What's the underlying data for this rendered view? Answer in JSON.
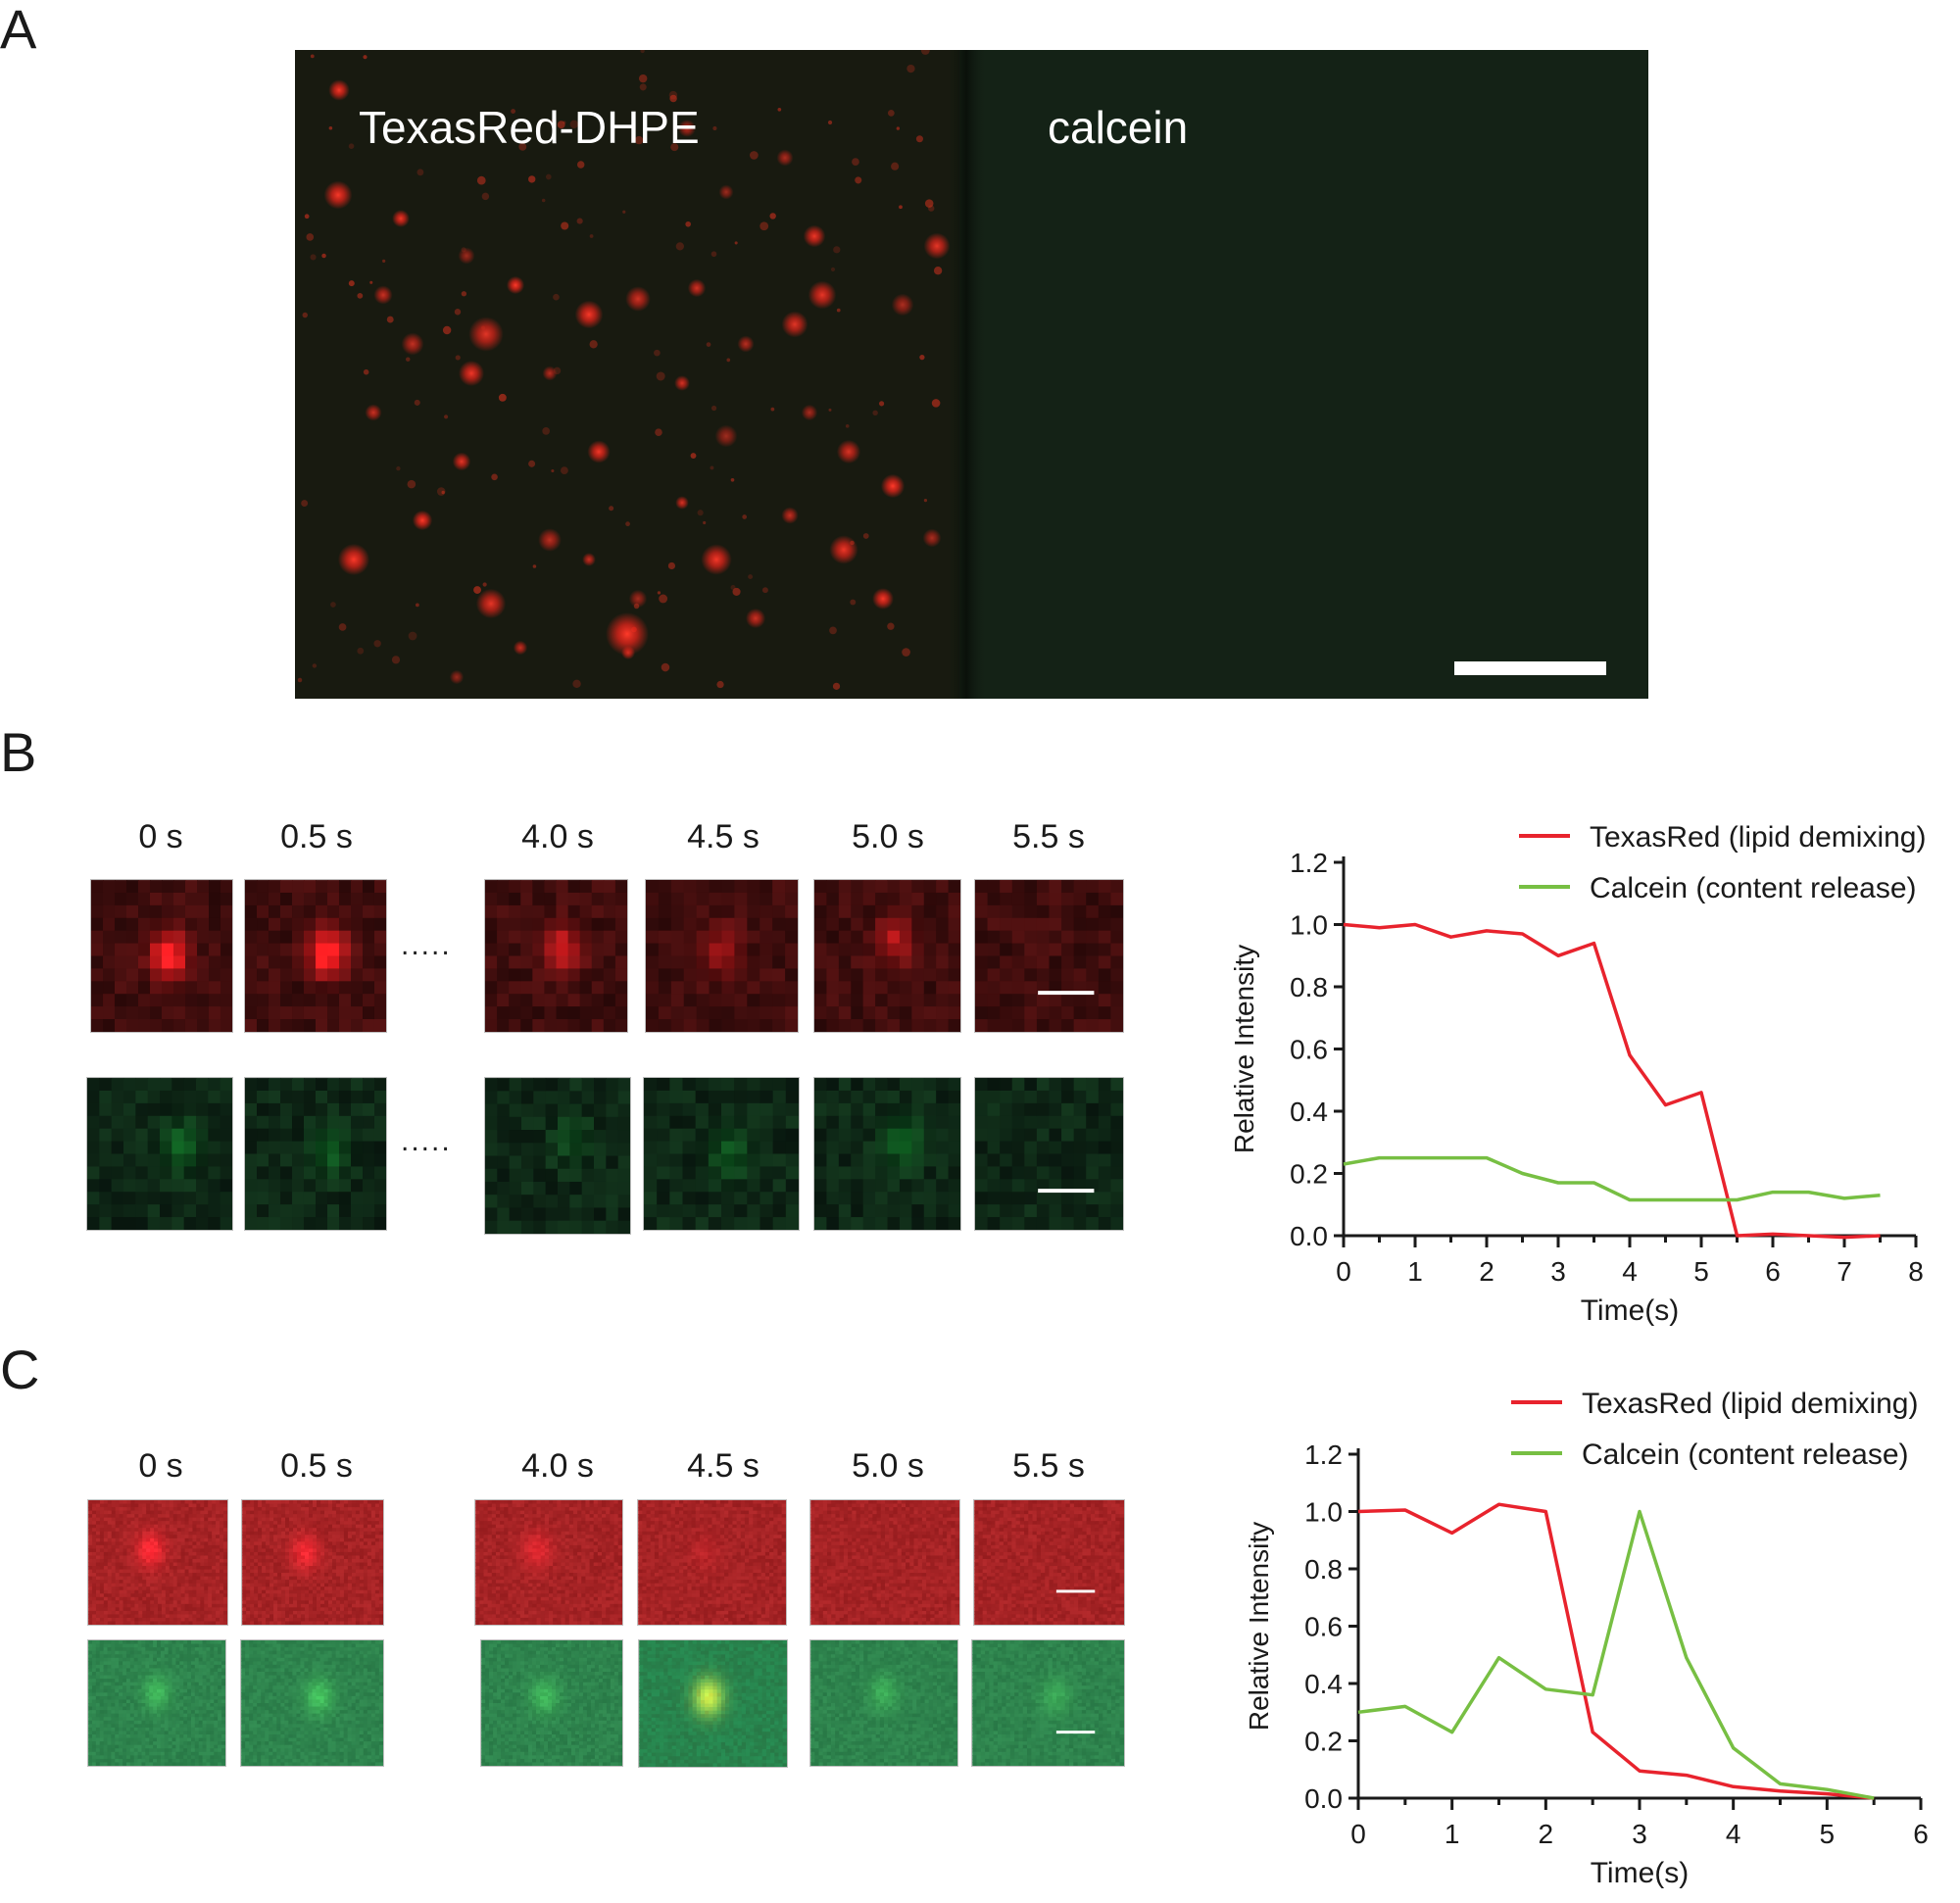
{
  "panels": {
    "A": {
      "letter": "A",
      "left_label": "TexasRed-DHPE",
      "right_label": "calcein"
    },
    "B": {
      "letter": "B",
      "times": [
        "0 s",
        "0.5 s",
        "4.0 s",
        "4.5 s",
        "5.0 s",
        "5.5 s"
      ],
      "ellipsis": "....."
    },
    "C": {
      "letter": "C",
      "times": [
        "0 s",
        "0.5 s",
        "4.0 s",
        "4.5 s",
        "5.0 s",
        "5.5 s"
      ]
    }
  },
  "colors": {
    "texasred": "#e8232d",
    "calcein": "#77bf43"
  },
  "chart_data": [
    {
      "type": "line",
      "title": "",
      "xlabel": "Time(s)",
      "ylabel": "Relative Intensity",
      "xlim": [
        0,
        8
      ],
      "ylim": [
        0,
        1.2
      ],
      "xticks": [
        0,
        1,
        2,
        3,
        4,
        5,
        6,
        7,
        8
      ],
      "yticks": [
        0.0,
        0.2,
        0.4,
        0.6,
        0.8,
        1.0,
        1.2
      ],
      "ytick_labels": [
        "0.0",
        "0.2",
        "0.4",
        "0.6",
        "0.8",
        "1.0",
        "1.2"
      ],
      "legend": "top-right",
      "series": [
        {
          "name": "TexasRed (lipid demixing)",
          "color": "#e8232d",
          "x": [
            0,
            0.5,
            1,
            1.5,
            2,
            2.5,
            3,
            3.5,
            4,
            4.5,
            5,
            5.5,
            6,
            6.5,
            7,
            7.5
          ],
          "y": [
            1.0,
            0.99,
            1.0,
            0.96,
            0.98,
            0.97,
            0.9,
            0.94,
            0.58,
            0.42,
            0.46,
            0.0,
            0.005,
            0.0,
            -0.005,
            0.0
          ]
        },
        {
          "name": "Calcein (content release)",
          "color": "#77bf43",
          "x": [
            0,
            0.5,
            1,
            1.5,
            2,
            2.5,
            3,
            3.5,
            4,
            4.5,
            5,
            5.5,
            6,
            6.5,
            7,
            7.5
          ],
          "y": [
            0.23,
            0.25,
            0.25,
            0.25,
            0.25,
            0.2,
            0.17,
            0.17,
            0.115,
            0.115,
            0.115,
            0.115,
            0.14,
            0.14,
            0.12,
            0.13
          ]
        }
      ]
    },
    {
      "type": "line",
      "title": "",
      "xlabel": "Time(s)",
      "ylabel": "Relative Intensity",
      "xlim": [
        0,
        6
      ],
      "ylim": [
        0,
        1.2
      ],
      "xticks": [
        0,
        1,
        2,
        3,
        4,
        5,
        6
      ],
      "yticks": [
        0.0,
        0.2,
        0.4,
        0.6,
        0.8,
        1.0,
        1.2
      ],
      "ytick_labels": [
        "0.0",
        "0.2",
        "0.4",
        "0.6",
        "0.8",
        "1.0",
        "1.2"
      ],
      "legend": "top-right",
      "series": [
        {
          "name": "TexasRed (lipid demixing)",
          "color": "#e8232d",
          "x": [
            0,
            0.5,
            1,
            1.5,
            2,
            2.5,
            3,
            3.5,
            4,
            4.5,
            5,
            5.5
          ],
          "y": [
            1.0,
            1.005,
            0.925,
            1.025,
            1.0,
            0.23,
            0.095,
            0.08,
            0.04,
            0.025,
            0.015,
            0.0
          ]
        },
        {
          "name": "Calcein (content release)",
          "color": "#77bf43",
          "x": [
            0,
            0.5,
            1,
            1.5,
            2,
            2.5,
            3,
            3.5,
            4,
            4.5,
            5,
            5.5
          ],
          "y": [
            0.3,
            0.32,
            0.23,
            0.49,
            0.38,
            0.36,
            1.0,
            0.49,
            0.175,
            0.05,
            0.03,
            0.0
          ]
        }
      ]
    }
  ]
}
